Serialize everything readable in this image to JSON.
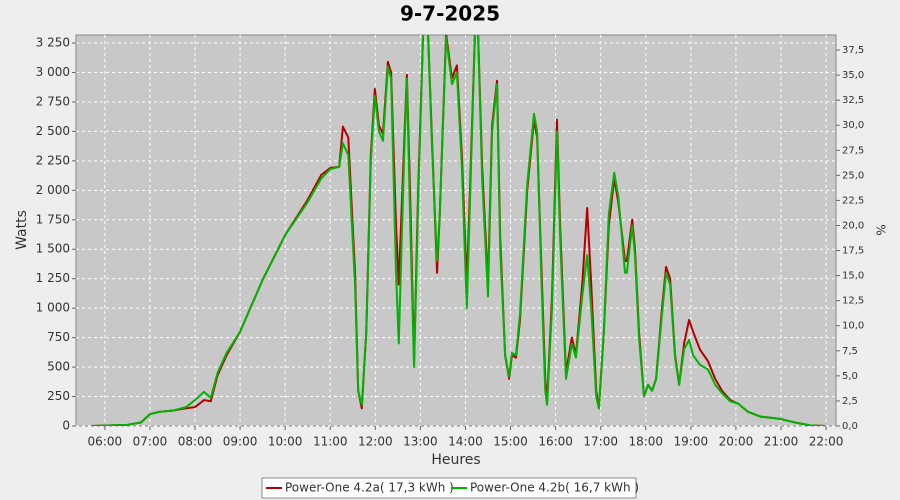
{
  "chart_data": {
    "type": "line",
    "title": "9-7-2025",
    "xlabel": "Heures",
    "ylabel": "Watts",
    "y2label": "%",
    "grid": true,
    "legend": "bottom",
    "xlim": [
      5.36,
      22.22
    ],
    "ylim": [
      0,
      3318
    ],
    "y2lim": [
      0,
      39
    ],
    "xticks": [
      {
        "value": 6,
        "label": "06:00"
      },
      {
        "value": 7,
        "label": "07:00"
      },
      {
        "value": 8,
        "label": "08:00"
      },
      {
        "value": 9,
        "label": "09:00"
      },
      {
        "value": 10,
        "label": "10:00"
      },
      {
        "value": 11,
        "label": "11:00"
      },
      {
        "value": 12,
        "label": "12:00"
      },
      {
        "value": 13,
        "label": "13:00"
      },
      {
        "value": 14,
        "label": "14:00"
      },
      {
        "value": 15,
        "label": "15:00"
      },
      {
        "value": 16,
        "label": "16:00"
      },
      {
        "value": 17,
        "label": "17:00"
      },
      {
        "value": 18,
        "label": "18:00"
      },
      {
        "value": 19,
        "label": "19:00"
      },
      {
        "value": 20,
        "label": "20:00"
      },
      {
        "value": 21,
        "label": "21:00"
      },
      {
        "value": 22,
        "label": "22:00"
      }
    ],
    "yticks": [
      0,
      250,
      500,
      750,
      {
        "value": 1000,
        "label": "1 000"
      },
      {
        "value": 1250,
        "label": "1 250"
      },
      {
        "value": 1500,
        "label": "1 500"
      },
      {
        "value": 1750,
        "label": "1 750"
      },
      {
        "value": 2000,
        "label": "2 000"
      },
      {
        "value": 2250,
        "label": "2 250"
      },
      {
        "value": 2500,
        "label": "2 500"
      },
      {
        "value": 2750,
        "label": "2 750"
      },
      {
        "value": 3000,
        "label": "3 000"
      },
      {
        "value": 3250,
        "label": "3 250"
      }
    ],
    "y2ticks": [
      {
        "value": 0,
        "label": "0,0"
      },
      {
        "value": 2.5,
        "label": "2,5"
      },
      {
        "value": 5,
        "label": "5,0"
      },
      {
        "value": 7.5,
        "label": "7,5"
      },
      {
        "value": 10,
        "label": "10,0"
      },
      {
        "value": 12.5,
        "label": "12,5"
      },
      {
        "value": 15,
        "label": "15,0"
      },
      {
        "value": 17.5,
        "label": "17,5"
      },
      {
        "value": 20,
        "label": "20,0"
      },
      {
        "value": 22.5,
        "label": "22,5"
      },
      {
        "value": 25,
        "label": "25,0"
      },
      {
        "value": 27.5,
        "label": "27,5"
      },
      {
        "value": 30,
        "label": "30,0"
      },
      {
        "value": 32.5,
        "label": "32,5"
      },
      {
        "value": 35,
        "label": "35,0"
      },
      {
        "value": 37.5,
        "label": "37,5"
      }
    ],
    "x": [
      5.7,
      6.5,
      6.8,
      7.0,
      7.2,
      7.5,
      7.8,
      8.0,
      8.2,
      8.35,
      8.5,
      8.7,
      9.0,
      9.5,
      10.0,
      10.5,
      10.8,
      11.0,
      11.2,
      11.28,
      11.4,
      11.55,
      11.62,
      11.7,
      11.8,
      11.9,
      11.99,
      12.08,
      12.17,
      12.28,
      12.35,
      12.46,
      12.52,
      12.64,
      12.7,
      12.77,
      12.86,
      12.95,
      13.06,
      13.17,
      13.26,
      13.37,
      13.43,
      13.57,
      13.7,
      13.81,
      13.92,
      14.03,
      14.1,
      14.21,
      14.28,
      14.37,
      14.5,
      14.59,
      14.7,
      14.77,
      14.88,
      14.97,
      15.03,
      15.12,
      15.21,
      15.37,
      15.52,
      15.59,
      15.68,
      15.77,
      15.81,
      15.92,
      16.03,
      16.1,
      16.23,
      16.36,
      16.45,
      16.59,
      16.7,
      16.79,
      16.9,
      16.96,
      17.07,
      17.18,
      17.3,
      17.39,
      17.54,
      17.58,
      17.7,
      17.76,
      17.85,
      17.96,
      18.05,
      18.14,
      18.23,
      18.36,
      18.45,
      18.54,
      18.65,
      18.74,
      18.85,
      18.96,
      19.05,
      19.2,
      19.38,
      19.54,
      19.69,
      19.87,
      20.05,
      20.27,
      20.54,
      20.98,
      21.31,
      21.65,
      21.98
    ],
    "series": [
      {
        "name": "Power-One 4.2a( 17,3 kWh )",
        "color": "#b40000",
        "values": [
          0,
          10,
          30,
          100,
          120,
          130,
          150,
          160,
          220,
          210,
          430,
          600,
          800,
          1240,
          1620,
          1920,
          2130,
          2190,
          2200,
          2540,
          2450,
          1300,
          300,
          150,
          800,
          2300,
          2860,
          2550,
          2480,
          3090,
          3000,
          1700,
          1200,
          2400,
          2980,
          2000,
          550,
          2000,
          3330,
          3330,
          2400,
          1300,
          1800,
          3330,
          2950,
          3060,
          2300,
          1200,
          2000,
          3330,
          3330,
          2200,
          1200,
          2550,
          2930,
          1600,
          600,
          400,
          600,
          580,
          900,
          2000,
          2600,
          2450,
          1400,
          400,
          200,
          1100,
          2600,
          1700,
          450,
          750,
          600,
          1200,
          1850,
          1200,
          300,
          150,
          800,
          1700,
          2100,
          1900,
          1400,
          1400,
          1750,
          1500,
          800,
          250,
          350,
          300,
          400,
          1000,
          1350,
          1250,
          600,
          350,
          700,
          900,
          800,
          650,
          550,
          400,
          300,
          220,
          190,
          120,
          80,
          60,
          30,
          5,
          0
        ]
      },
      {
        "name": "Power-One 4.2b( 16,7 kWh )",
        "color": "#00b400",
        "values": [
          0,
          10,
          30,
          100,
          120,
          130,
          160,
          220,
          290,
          240,
          450,
          620,
          800,
          1240,
          1620,
          1900,
          2100,
          2180,
          2200,
          2400,
          2300,
          1200,
          300,
          180,
          800,
          2250,
          2800,
          2500,
          2420,
          3050,
          2950,
          1300,
          700,
          2300,
          2950,
          1800,
          500,
          1900,
          3330,
          3330,
          2350,
          1400,
          1800,
          3300,
          2900,
          3000,
          2200,
          1000,
          1900,
          3330,
          3330,
          2100,
          1100,
          2500,
          2900,
          1500,
          600,
          420,
          620,
          600,
          950,
          2050,
          2650,
          2500,
          1300,
          300,
          180,
          1000,
          2500,
          1600,
          400,
          700,
          580,
          1100,
          1450,
          1000,
          250,
          150,
          800,
          1800,
          2150,
          1950,
          1300,
          1300,
          1700,
          1450,
          750,
          250,
          350,
          300,
          400,
          950,
          1300,
          1200,
          580,
          350,
          650,
          730,
          600,
          520,
          480,
          350,
          280,
          210,
          190,
          120,
          80,
          60,
          30,
          5,
          0
        ]
      }
    ]
  }
}
